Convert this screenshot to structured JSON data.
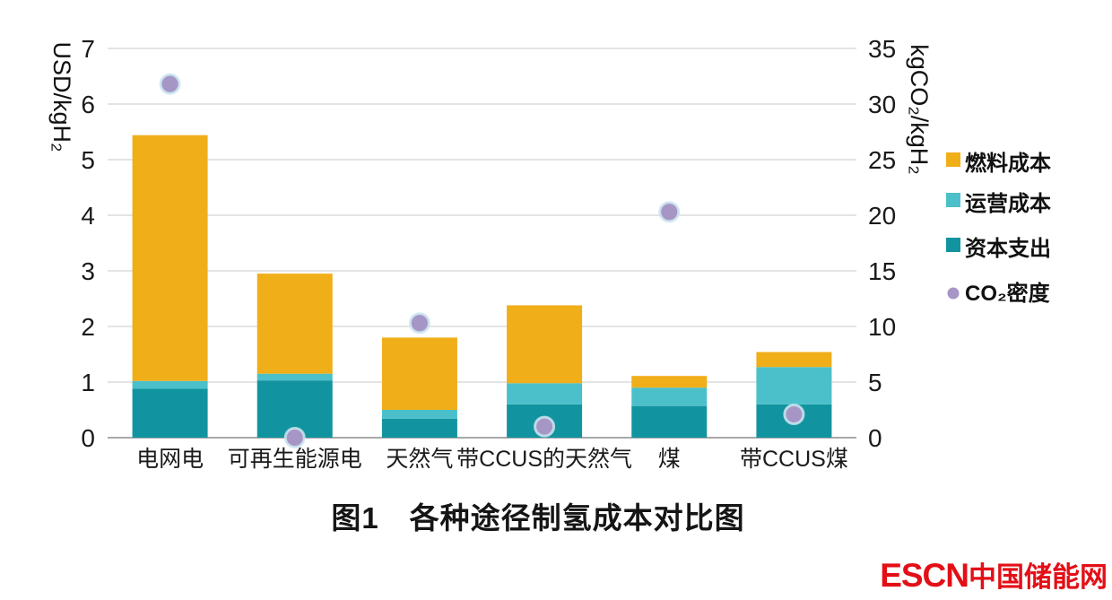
{
  "caption": "图1　各种途径制氢成本对比图",
  "logo": {
    "latin": "ESCN",
    "chinese": "中国储能网",
    "color": "#e30f17"
  },
  "chart_data": {
    "type": "bar",
    "subtype": "stacked-bar-with-scatter",
    "title": "图1 各种途径制氢成本对比图",
    "categories": [
      "电网电",
      "可再生能源电",
      "天然气",
      "带CCUS的天然气",
      "煤",
      "带CCUS煤"
    ],
    "left_axis": {
      "label": "USD/kgH₂",
      "min": 0,
      "max": 7,
      "ticks": [
        0,
        1,
        2,
        3,
        4,
        5,
        6,
        7
      ]
    },
    "right_axis": {
      "label": "kgCO₂/kgH₂",
      "min": 0,
      "max": 35,
      "ticks": [
        0,
        5,
        10,
        15,
        20,
        25,
        30,
        35
      ]
    },
    "grid": true,
    "legend_position": "right",
    "series": [
      {
        "key": "capex",
        "name": "资本支出",
        "type": "bar",
        "color": "#1294a0",
        "values": [
          0.88,
          1.03,
          0.34,
          0.6,
          0.57,
          0.6
        ]
      },
      {
        "key": "opex",
        "name": "运营成本",
        "type": "bar",
        "color": "#4bc0ca",
        "values": [
          0.14,
          0.12,
          0.16,
          0.38,
          0.33,
          0.67
        ]
      },
      {
        "key": "fuel",
        "name": "燃料成本",
        "type": "bar",
        "color": "#f0ae19",
        "values": [
          4.42,
          1.8,
          1.3,
          1.4,
          0.21,
          0.27
        ]
      },
      {
        "key": "co2",
        "name": "CO₂密度",
        "type": "scatter",
        "axis": "right",
        "color": "#a596c6",
        "values": [
          31.8,
          0,
          10.3,
          1.0,
          20.3,
          2.1
        ]
      }
    ],
    "bar_totals_usd_per_kg": [
      5.44,
      2.95,
      1.8,
      2.38,
      1.11,
      1.54
    ],
    "legend": [
      {
        "label": "燃料成本",
        "key": "fuel"
      },
      {
        "label": "运营成本",
        "key": "opex"
      },
      {
        "label": "资本支出",
        "key": "capex"
      },
      {
        "label": "CO₂密度",
        "key": "co2"
      }
    ],
    "colors": {
      "gridline": "#dcdcdc",
      "axis_line": "#a8a8a8",
      "tick_text": "#1a1a1a"
    }
  }
}
